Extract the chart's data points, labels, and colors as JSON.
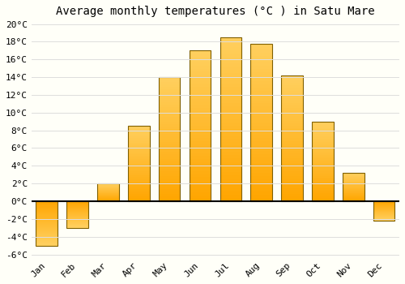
{
  "title": "Average monthly temperatures (°C ) in Satu Mare",
  "months": [
    "Jan",
    "Feb",
    "Mar",
    "Apr",
    "May",
    "Jun",
    "Jul",
    "Aug",
    "Sep",
    "Oct",
    "Nov",
    "Dec"
  ],
  "values": [
    -5.0,
    -3.0,
    2.0,
    8.5,
    14.0,
    17.0,
    18.5,
    17.8,
    14.2,
    9.0,
    3.2,
    -2.2
  ],
  "bar_color_bottom": "#FFA500",
  "bar_color_top": "#FFD060",
  "bar_edge_color": "#806000",
  "background_color": "#FFFFF8",
  "grid_color": "#DDDDDD",
  "ylim_min": -6,
  "ylim_max": 20,
  "yticks": [
    -6,
    -4,
    -2,
    0,
    2,
    4,
    6,
    8,
    10,
    12,
    14,
    16,
    18,
    20
  ],
  "ytick_labels": [
    "-6°C",
    "-4°C",
    "-2°C",
    "0°C",
    "2°C",
    "4°C",
    "6°C",
    "8°C",
    "10°C",
    "12°C",
    "14°C",
    "16°C",
    "18°C",
    "20°C"
  ],
  "title_fontsize": 10,
  "tick_fontsize": 8,
  "bar_width": 0.7
}
